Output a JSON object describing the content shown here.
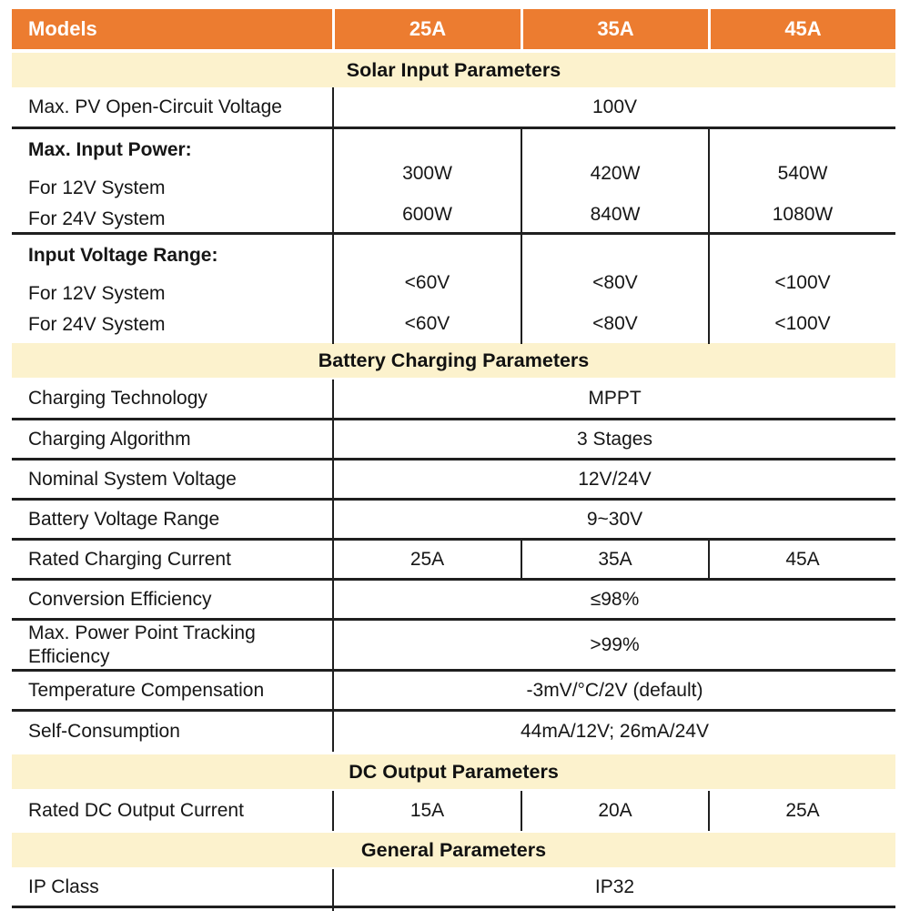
{
  "header": {
    "models_label": "Models",
    "model_columns": [
      "25A",
      "35A",
      "45A"
    ]
  },
  "solar_section": {
    "title": "Solar Input Parameters",
    "pv_open_circuit": {
      "label": "Max. PV Open-Circuit Voltage",
      "value": "100V"
    },
    "max_input_power": {
      "title": "Max. Input Power:",
      "row_12v": {
        "label": "For 12V System",
        "values": [
          "300W",
          "420W",
          "540W"
        ]
      },
      "row_24v": {
        "label": "For 24V System",
        "values": [
          "600W",
          "840W",
          "1080W"
        ]
      }
    },
    "input_voltage_range": {
      "title": "Input Voltage Range:",
      "row_12v": {
        "label": "For 12V System",
        "values": [
          "<60V",
          "<80V",
          "<100V"
        ]
      },
      "row_24v": {
        "label": "For 24V System",
        "values": [
          "<60V",
          "<80V",
          "<100V"
        ]
      }
    }
  },
  "battery_section": {
    "title": "Battery Charging Parameters",
    "rows_upper": [
      {
        "label": "Charging Technology",
        "value": "MPPT"
      },
      {
        "label": "Charging Algorithm",
        "value": "3 Stages"
      },
      {
        "label": "Nominal System Voltage",
        "value": "12V/24V"
      },
      {
        "label": "Battery Voltage Range",
        "value": "9~30V"
      }
    ],
    "rated_charging_current": {
      "label": "Rated Charging Current",
      "values": [
        "25A",
        "35A",
        "45A"
      ]
    },
    "rows_lower": [
      {
        "label": "Conversion Efficiency",
        "value": "≤98%"
      },
      {
        "label": "Max. Power Point Tracking Efficiency",
        "value": ">99%"
      },
      {
        "label": "Temperature Compensation",
        "value": "-3mV/°C/2V (default)"
      },
      {
        "label": "Self-Consumption",
        "value": "44mA/12V; 26mA/24V"
      }
    ]
  },
  "dc_section": {
    "title": "DC Output Parameters",
    "rated_dc_output_current": {
      "label": "Rated DC Output Current",
      "values": [
        "15A",
        "20A",
        "25A"
      ]
    }
  },
  "general_section": {
    "title": "General Parameters",
    "rows": [
      {
        "label": "IP Class",
        "value": "IP32"
      }
    ]
  },
  "colors": {
    "header_orange": "#EC7C30",
    "section_cream": "#FCF2CD",
    "rule_dark": "#1F1F1F",
    "header_text": "#FFFFFF"
  }
}
